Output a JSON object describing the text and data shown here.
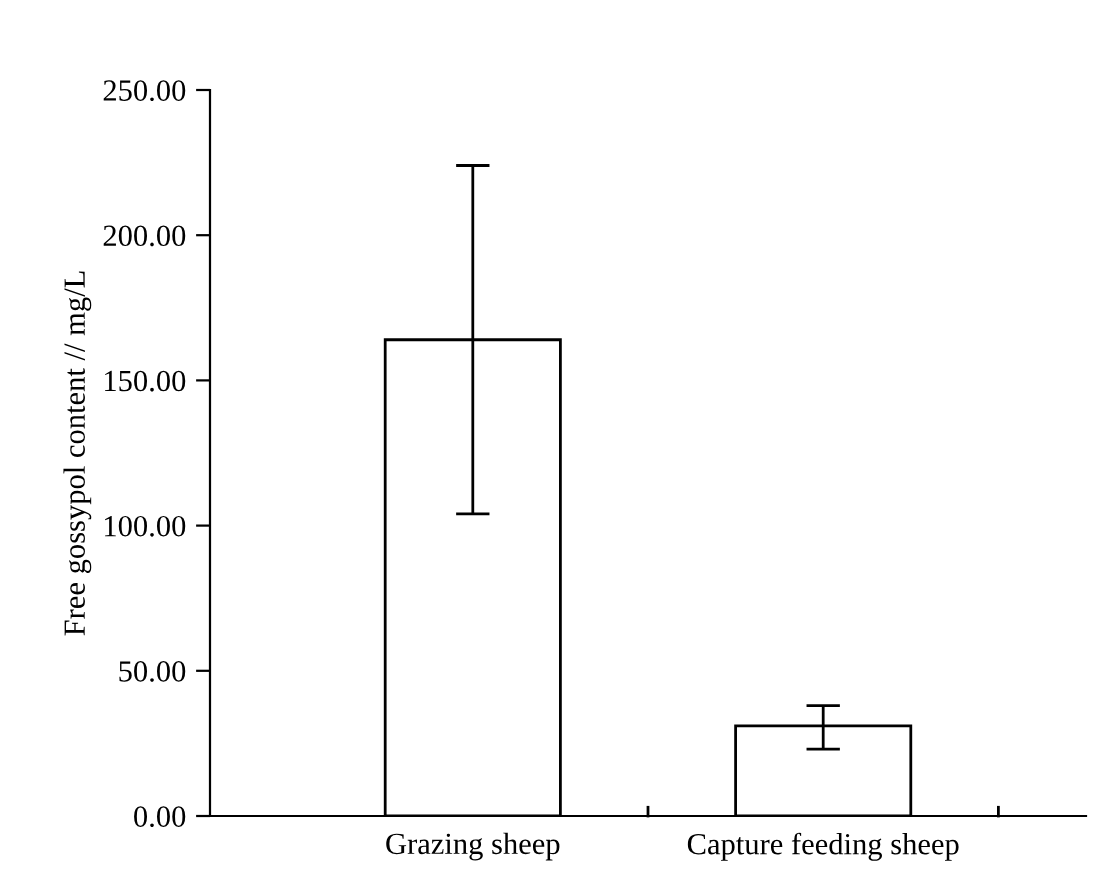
{
  "chart_data": {
    "type": "bar",
    "ylabel": "Free gossypol content // mg/L",
    "categories": [
      "Grazing sheep",
      "Capture feeding sheep"
    ],
    "values": [
      164,
      31
    ],
    "errors": [
      [
        104,
        224
      ],
      [
        23,
        38
      ]
    ],
    "color": "#ffffff",
    "ylim": [
      0,
      250
    ],
    "yticks": [
      {
        "value": 0,
        "label": "0.00"
      },
      {
        "value": 50,
        "label": "50.00"
      },
      {
        "value": 100,
        "label": "100.00"
      },
      {
        "value": 150,
        "label": "150.00"
      },
      {
        "value": 200,
        "label": "200.00"
      },
      {
        "value": 250,
        "label": "250.00"
      }
    ],
    "grid": false,
    "legend": false
  }
}
